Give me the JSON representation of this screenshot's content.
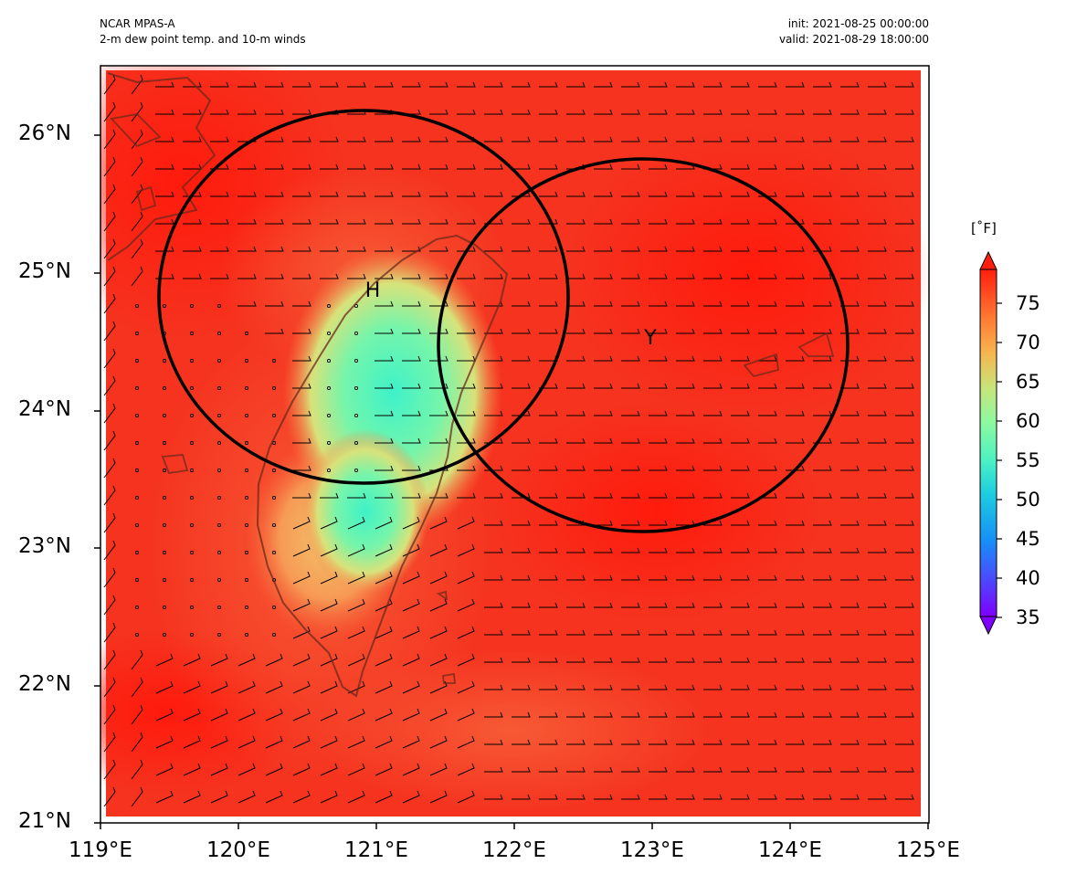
{
  "header": {
    "model": "NCAR MPAS-A",
    "field": "2-m dew point temp. and 10-m winds",
    "init": "init: 2021-08-25 00:00:00",
    "valid": "valid: 2021-08-29 18:00:00"
  },
  "axes": {
    "x_ticks": [
      "119°E",
      "120°E",
      "121°E",
      "122°E",
      "123°E",
      "124°E",
      "125°E"
    ],
    "y_ticks": [
      "26°N",
      "25°N",
      "24°N",
      "23°N",
      "22°N",
      "21°N"
    ],
    "x_range_deg": [
      119,
      125
    ],
    "y_range_deg": [
      21,
      26.5
    ]
  },
  "colorbar": {
    "unit": "[˚F]",
    "labels": [
      "75",
      "70",
      "65",
      "60",
      "55",
      "50",
      "45",
      "40",
      "35"
    ],
    "range": [
      35,
      79
    ],
    "colormap": "rainbow"
  },
  "markers": [
    {
      "label": "H",
      "lon": 121.0,
      "lat": 24.85
    },
    {
      "label": "Y",
      "lon": 122.97,
      "lat": 24.5
    }
  ],
  "circles": [
    {
      "center_lon": 120.93,
      "center_lat": 24.83
    },
    {
      "center_lon": 122.95,
      "center_lat": 24.47
    }
  ],
  "colors": {
    "background_field": "#f5331f",
    "warm_red": "#ff1e0e",
    "low_dewpoint": "#46f0c8",
    "coast": "#6b2a1c",
    "circle": "#000000"
  }
}
